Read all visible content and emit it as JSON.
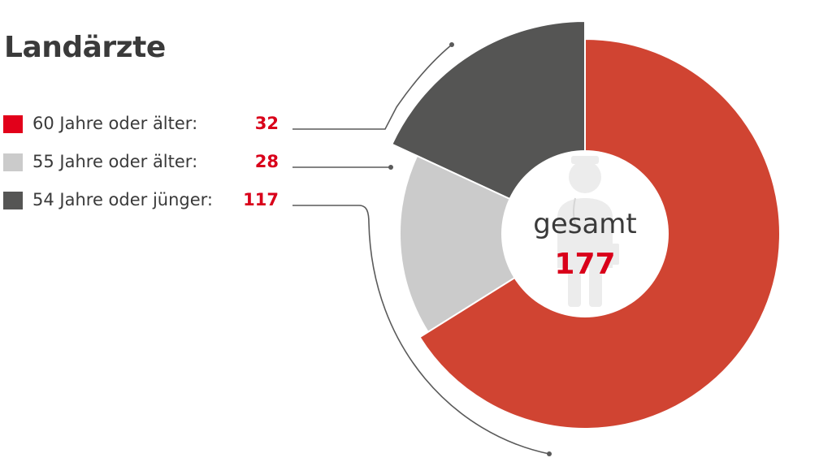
{
  "chart_data": {
    "type": "pie",
    "title": "Landärzte",
    "categories": [
      "60 Jahre oder älter:",
      "55 Jahre oder älter:",
      "54 Jahre oder jünger:"
    ],
    "values": [
      32,
      28,
      117
    ],
    "series_display_values": [
      "32",
      "28",
      "117"
    ],
    "center_label": "gesamt",
    "total": "177",
    "slice_colors": [
      "#555554",
      "#cbcbcb",
      "#d04432"
    ],
    "legend_colors": [
      "#e2001a",
      "#cbcbcb",
      "#555554"
    ],
    "value_color": "#d9001a",
    "center_icon": "doctor-icon"
  }
}
